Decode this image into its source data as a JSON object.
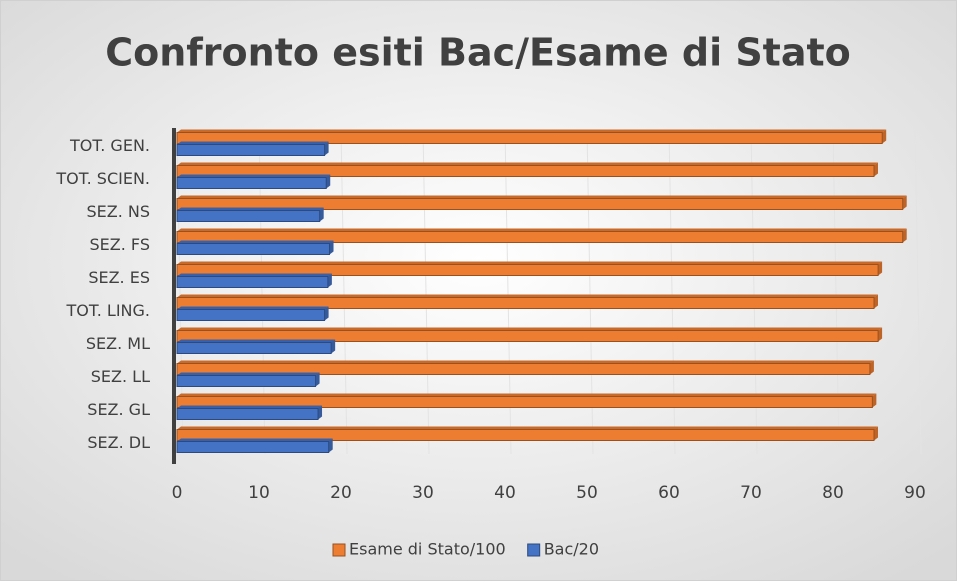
{
  "chart_data": {
    "type": "hbar",
    "title": "Confronto esiti Bac/Esame di Stato",
    "categories": [
      "TOT. GEN.",
      "TOT. SCIEN.",
      "SEZ. NS",
      "SEZ. FS",
      "SEZ. ES",
      "TOT. LING.",
      "SEZ. ML",
      "SEZ. LL",
      "SEZ. GL",
      "SEZ. DL"
    ],
    "series": [
      {
        "name": "Esame di Stato/100",
        "color": "#ed7d31",
        "values": [
          86,
          85,
          88.5,
          88.5,
          85.5,
          85,
          85.5,
          84.5,
          84.8,
          85
        ]
      },
      {
        "name": "Bac/20",
        "color": "#4472c4",
        "values": [
          18,
          18.2,
          17.4,
          18.6,
          18.4,
          18,
          18.8,
          16.9,
          17.2,
          18.5
        ]
      }
    ],
    "xlim": [
      0,
      90
    ],
    "xticks": [
      0,
      10,
      20,
      30,
      40,
      50,
      60,
      70,
      80,
      90
    ],
    "grid": true,
    "legend": "bottom"
  }
}
